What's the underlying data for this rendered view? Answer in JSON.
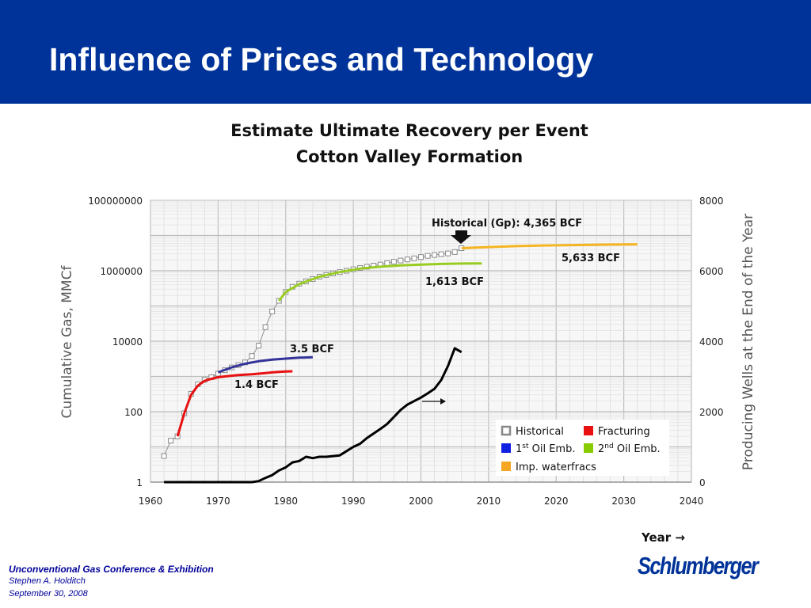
{
  "slide": {
    "title": "Influence of Prices and Technology",
    "footer": {
      "conference": "Unconventional Gas Conference & Exhibition",
      "author": "Stephen A. Holditch",
      "date": "September 30, 2008"
    },
    "logo_text": "Schlumberger",
    "colors": {
      "header": "#003399",
      "footer_text": "#000099",
      "logo": "#003399"
    }
  },
  "chart_data": {
    "type": "line",
    "title": "Estimate Ultimate Recovery per Event",
    "subtitle": "Cotton Valley Formation",
    "xlabel": "Year",
    "ylabel": "Cumulative Gas, MMCf",
    "y2label": "Producing Wells at the End of the Year",
    "y_scale": "log",
    "xlim": [
      1960,
      2040
    ],
    "ylim": [
      1,
      100000000
    ],
    "y2lim": [
      0,
      8000
    ],
    "x_ticks": [
      "1960",
      "1970",
      "1980",
      "1990",
      "2000",
      "2010",
      "2020",
      "2030",
      "2040"
    ],
    "y_ticks": [
      "1",
      "100",
      "10000",
      "1000000",
      "100000000"
    ],
    "y2_ticks": [
      "0",
      "2000",
      "4000",
      "6000",
      "8000"
    ],
    "grid": true,
    "legend_position": "bottom-right",
    "series": [
      {
        "name": "Historical",
        "axis": "left",
        "color": "#909090",
        "marker": "square",
        "x": [
          1962,
          1963,
          1964,
          1965,
          1966,
          1967,
          1968,
          1969,
          1970,
          1971,
          1972,
          1973,
          1974,
          1975,
          1976,
          1977,
          1978,
          1979,
          1980,
          1981,
          1982,
          1983,
          1984,
          1985,
          1986,
          1987,
          1988,
          1989,
          1990,
          1991,
          1992,
          1993,
          1994,
          1995,
          1996,
          1997,
          1998,
          1999,
          2000,
          2001,
          2002,
          2003,
          2004,
          2005,
          2006
        ],
        "y": [
          5.5,
          15,
          20,
          90,
          320,
          600,
          800,
          950,
          1200,
          1500,
          1800,
          2100,
          2500,
          3800,
          7500,
          25000,
          70000,
          140000,
          250000,
          350000,
          430000,
          500000,
          580000,
          680000,
          760000,
          840000,
          920000,
          1000000,
          1100000,
          1200000,
          1300000,
          1400000,
          1500000,
          1650000,
          1800000,
          1950000,
          2100000,
          2250000,
          2450000,
          2650000,
          2800000,
          2950000,
          3100000,
          3400000,
          4365000
        ]
      },
      {
        "name": "Fracturing",
        "axis": "left",
        "color": "#e81010",
        "x": [
          1964,
          1965,
          1966,
          1967,
          1968,
          1969,
          1970,
          1971,
          1972,
          1973,
          1974,
          1975,
          1976,
          1977,
          1978,
          1979,
          1980,
          1981
        ],
        "y": [
          20,
          90,
          300,
          550,
          750,
          850,
          950,
          1000,
          1050,
          1100,
          1120,
          1150,
          1200,
          1250,
          1300,
          1350,
          1380,
          1400
        ]
      },
      {
        "name": "1st Oil Emb.",
        "axis": "left",
        "color": "#333399",
        "x": [
          1970,
          1972,
          1974,
          1976,
          1978,
          1980,
          1982,
          1984
        ],
        "y": [
          1300,
          1800,
          2300,
          2700,
          3000,
          3200,
          3400,
          3500
        ]
      },
      {
        "name": "2nd Oil Emb.",
        "axis": "left",
        "color": "#99cc22",
        "x": [
          1979,
          1980,
          1982,
          1985,
          1988,
          1991,
          1994,
          1997,
          2000,
          2003,
          2006,
          2009
        ],
        "y": [
          140000,
          250000,
          420000,
          680000,
          920000,
          1150000,
          1300000,
          1420000,
          1500000,
          1560000,
          1600000,
          1613000
        ]
      },
      {
        "name": "Imp. waterfracs",
        "axis": "left",
        "color": "#f5b523",
        "x": [
          2006,
          2010,
          2014,
          2018,
          2022,
          2026,
          2030,
          2032
        ],
        "y": [
          4365000,
          4700000,
          5000000,
          5200000,
          5350000,
          5480000,
          5580000,
          5633000
        ]
      },
      {
        "name": "Producing Wells",
        "axis": "right",
        "color": "#000000",
        "x": [
          1962,
          1970,
          1975,
          1976,
          1977,
          1978,
          1979,
          1980,
          1981,
          1982,
          1983,
          1984,
          1985,
          1986,
          1987,
          1988,
          1989,
          1990,
          1991,
          1992,
          1993,
          1994,
          1995,
          1996,
          1997,
          1998,
          1999,
          2000,
          2001,
          2002,
          2003,
          2004,
          2005,
          2006
        ],
        "y": [
          0,
          0,
          0,
          30,
          120,
          200,
          330,
          420,
          560,
          600,
          720,
          680,
          720,
          720,
          740,
          760,
          880,
          1000,
          1090,
          1250,
          1380,
          1510,
          1650,
          1850,
          2050,
          2200,
          2300,
          2400,
          2520,
          2650,
          2900,
          3300,
          3800,
          3690
        ]
      }
    ],
    "annotations": [
      {
        "text": "Historical (Gp): 4,365 BCF",
        "x": 2006,
        "y": 4365000
      },
      {
        "text": "5,633 BCF",
        "x": 2032,
        "y": 5633000
      },
      {
        "text": "1,613 BCF",
        "x": 2009,
        "y": 1613000
      },
      {
        "text": "3.5 BCF",
        "x": 1984,
        "y": 3500
      },
      {
        "text": "1.4 BCF",
        "x": 1981,
        "y": 1400
      }
    ],
    "legend": [
      {
        "label": "Historical",
        "color": "#888888",
        "style": "hollow-square"
      },
      {
        "label": "Fracturing",
        "color": "#e81010",
        "style": "filled-square"
      },
      {
        "label": "1st Oil Emb.",
        "main": "1",
        "sup": "st",
        "rest": " Oil Emb.",
        "color": "#1020e0",
        "style": "filled-square"
      },
      {
        "label": "2nd Oil Emb.",
        "main": "2",
        "sup": "nd",
        "rest": " Oil Emb.",
        "color": "#88cc00",
        "style": "filled-square"
      },
      {
        "label": "Imp. waterfracs",
        "color": "#f5a623",
        "style": "filled-square"
      }
    ]
  }
}
